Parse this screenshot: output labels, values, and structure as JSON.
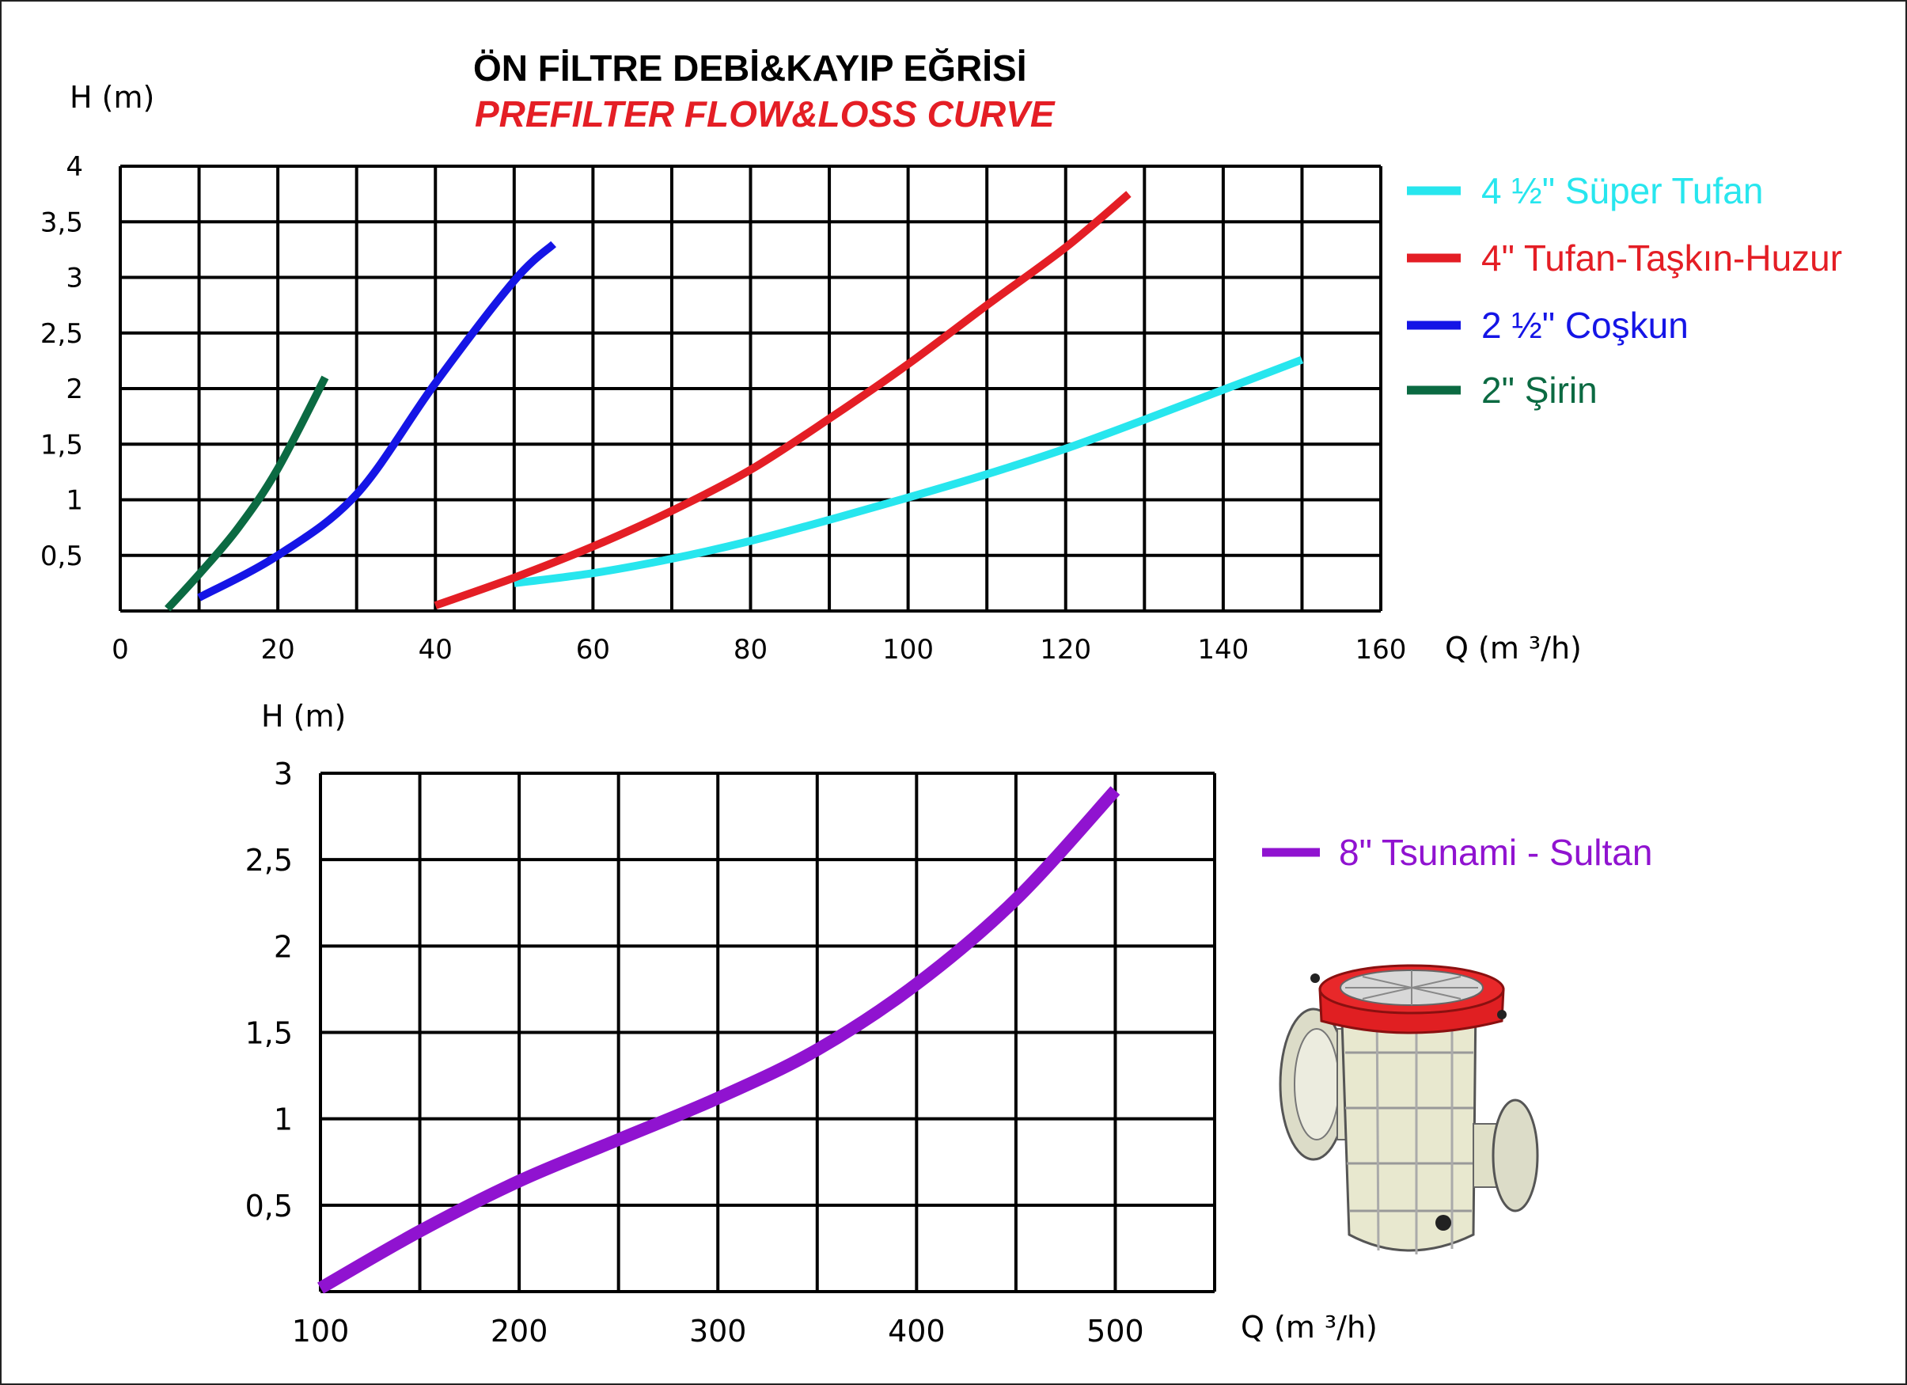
{
  "title": "ÖN FİLTRE DEBİ&KAYIP EĞRİSİ",
  "subtitle": "PREFILTER FLOW&LOSS CURVE",
  "product_image": "prefilter-housing-icon",
  "chart_data": [
    {
      "type": "line",
      "ylabel": "H (m)",
      "xlabel": "Q (m ³/h)",
      "xlim": [
        0,
        160
      ],
      "ylim": [
        0,
        4
      ],
      "x_ticks": [
        "0",
        "20",
        "40",
        "60",
        "80",
        "100",
        "120",
        "140",
        "160"
      ],
      "y_ticks": [
        "0,5",
        "1",
        "1,5",
        "2",
        "2,5",
        "3",
        "3,5",
        "4"
      ],
      "x_grid_step": 10,
      "y_grid_step": 0.5,
      "grid": true,
      "legend_position": "right",
      "series": [
        {
          "name": "4 ½\" Süper Tufan",
          "color": "#27e6ee",
          "points": [
            [
              50,
              0.25
            ],
            [
              60,
              0.34
            ],
            [
              70,
              0.47
            ],
            [
              80,
              0.63
            ],
            [
              90,
              0.82
            ],
            [
              100,
              1.02
            ],
            [
              110,
              1.23
            ],
            [
              120,
              1.46
            ],
            [
              130,
              1.72
            ],
            [
              140,
              1.99
            ],
            [
              150,
              2.26
            ]
          ]
        },
        {
          "name": "4\" Tufan-Taşkın-Huzur",
          "color": "#e41e25",
          "points": [
            [
              40,
              0.05
            ],
            [
              50,
              0.3
            ],
            [
              60,
              0.58
            ],
            [
              70,
              0.9
            ],
            [
              80,
              1.27
            ],
            [
              90,
              1.73
            ],
            [
              100,
              2.22
            ],
            [
              110,
              2.75
            ],
            [
              120,
              3.27
            ],
            [
              128,
              3.75
            ]
          ]
        },
        {
          "name": "2 ½\" Coşkun",
          "color": "#1515e6",
          "points": [
            [
              10,
              0.12
            ],
            [
              20,
              0.5
            ],
            [
              30,
              1.05
            ],
            [
              40,
              2.05
            ],
            [
              50,
              2.97
            ],
            [
              55,
              3.3
            ]
          ]
        },
        {
          "name": "2\" Şirin",
          "color": "#0b6a42",
          "points": [
            [
              6,
              0.02
            ],
            [
              10,
              0.33
            ],
            [
              15,
              0.75
            ],
            [
              20,
              1.28
            ],
            [
              26,
              2.1
            ]
          ]
        }
      ]
    },
    {
      "type": "line",
      "ylabel": "H (m)",
      "xlabel": "Q (m ³/h)",
      "xlim": [
        100,
        550
      ],
      "ylim": [
        0,
        3
      ],
      "x_ticks": [
        "100",
        "200",
        "300",
        "400",
        "500"
      ],
      "y_ticks": [
        "0,5",
        "1",
        "1,5",
        "2",
        "2,5",
        "3"
      ],
      "x_grid_step": 50,
      "y_grid_step": 0.5,
      "grid": true,
      "legend_position": "right",
      "series": [
        {
          "name": "8\" Tsunami - Sultan",
          "color": "#9013d0",
          "points": [
            [
              100,
              0.02
            ],
            [
              150,
              0.35
            ],
            [
              200,
              0.64
            ],
            [
              250,
              0.88
            ],
            [
              300,
              1.12
            ],
            [
              350,
              1.4
            ],
            [
              400,
              1.78
            ],
            [
              450,
              2.27
            ],
            [
              500,
              2.9
            ]
          ]
        }
      ]
    }
  ]
}
